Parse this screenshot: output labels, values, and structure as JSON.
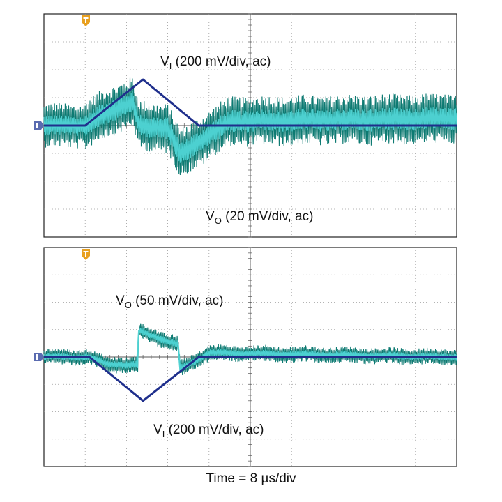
{
  "chart_data": [
    {
      "type": "line",
      "title": "",
      "xlabel": "Time = 8 µs/div",
      "grid": true,
      "divisions": {
        "x": 10,
        "y": 8
      },
      "x_unit": "µs",
      "x_per_div": 8,
      "colors": {
        "vi": "#1f2f8c",
        "vo_dark": "#0d7a72",
        "vo_light": "#4dd0d0",
        "marker": "#e8a020",
        "ground_marker": "#5a6bb0"
      },
      "series": [
        {
          "name": "VI (200 mV/div, ac)",
          "label_main": "V",
          "label_sub": "I",
          "label_rest": " (200 mV/div, ac)",
          "volts_per_div": 0.2,
          "x_div": [
            0,
            1,
            2.4,
            3.75,
            10
          ],
          "y_div": [
            0,
            0,
            1.65,
            0,
            0
          ]
        },
        {
          "name": "VO (20 mV/div, ac)",
          "label_main": "V",
          "label_sub": "O",
          "label_rest": " (20 mV/div, ac)",
          "volts_per_div": 0.02,
          "noise_envelope_div": {
            "before": 0.8,
            "after": 0.9
          },
          "x_div": [
            0,
            1,
            1.5,
            2.15,
            2.3,
            3.0,
            3.3,
            3.8,
            4.5,
            10
          ],
          "y_div": [
            0,
            0,
            0.45,
            0.85,
            0,
            -0.1,
            -1.0,
            -0.55,
            0.15,
            0.25
          ]
        }
      ]
    },
    {
      "type": "line",
      "title": "",
      "xlabel": "Time = 8 µs/div",
      "grid": true,
      "divisions": {
        "x": 10,
        "y": 8
      },
      "series": [
        {
          "name": "VI (200 mV/div, ac)",
          "label_main": "V",
          "label_sub": "I",
          "label_rest": " (200 mV/div, ac)",
          "volts_per_div": 0.2,
          "x_div": [
            0,
            1.1,
            2.4,
            3.75,
            10
          ],
          "y_div": [
            0,
            0,
            -1.6,
            0,
            0
          ]
        },
        {
          "name": "VO (50 mV/div, ac)",
          "label_main": "V",
          "label_sub": "O",
          "label_rest": " (50 mV/div, ac)",
          "volts_per_div": 0.05,
          "noise_envelope_div": {
            "before": 0.3,
            "after": 0.3
          },
          "x_div": [
            0,
            1.1,
            1.5,
            2.28,
            2.3,
            3.25,
            3.3,
            3.6,
            4.0,
            10
          ],
          "y_div": [
            0,
            0,
            -0.25,
            -0.3,
            0.95,
            0.45,
            -0.45,
            -0.2,
            0.15,
            0
          ]
        }
      ]
    }
  ]
}
